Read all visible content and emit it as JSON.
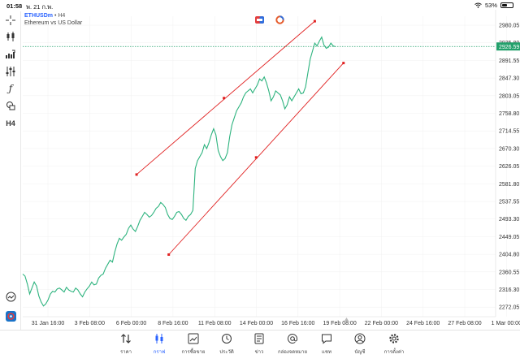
{
  "status": {
    "time": "01:58",
    "date": "พ. 21 ก.พ.",
    "battery": "53%",
    "battery_level": 0.53
  },
  "symbol": {
    "name": "ETHUSDm",
    "separator": "•",
    "timeframe": "H4",
    "description": "Ethereum vs US Dollar"
  },
  "left_toolbar": {
    "items": [
      {
        "name": "crosshair-icon"
      },
      {
        "name": "candles-icon"
      },
      {
        "name": "indicators-icon"
      },
      {
        "name": "settings-sliders-icon"
      },
      {
        "name": "function-icon"
      },
      {
        "name": "objects-icon"
      },
      {
        "name": "timeframe-button",
        "label": "H4"
      }
    ],
    "bottom_items": [
      {
        "name": "chart-gauge-icon"
      },
      {
        "name": "broker-logo-icon"
      }
    ]
  },
  "colors": {
    "line": "#2db37e",
    "drawing": "#e02020",
    "accent": "#2962ff",
    "current_price_bg": "#22a06b",
    "grid": "#f0f0f0"
  },
  "chart_data": {
    "type": "line",
    "y_ticks": [
      "2980.05",
      "2935.80",
      "2891.55",
      "2847.30",
      "2803.05",
      "2758.80",
      "2714.55",
      "2670.30",
      "2626.05",
      "2581.80",
      "2537.55",
      "2493.30",
      "2449.05",
      "2404.80",
      "2360.55",
      "2316.30",
      "2272.05"
    ],
    "x_ticks": [
      "31 Jan 16:00",
      "3 Feb 08:00",
      "6 Feb 00:00",
      "8 Feb 16:00",
      "11 Feb 08:00",
      "14 Feb 00:00",
      "16 Feb 16:00",
      "19 Feb 08:00",
      "22 Feb 00:00",
      "24 Feb 16:00",
      "27 Feb 08:00",
      "1 Mar 00:00"
    ],
    "current_price": "2926.59",
    "ylim": [
      2255,
      2990
    ],
    "series": [
      {
        "values": [
          2355,
          2350,
          2330,
          2305,
          2320,
          2335,
          2325,
          2300,
          2285,
          2275,
          2280,
          2290,
          2305,
          2312,
          2310,
          2318,
          2320,
          2315,
          2310,
          2322,
          2315,
          2312,
          2310,
          2320,
          2315,
          2305,
          2298,
          2310,
          2318,
          2325,
          2335,
          2328,
          2330,
          2345,
          2352,
          2355,
          2370,
          2380,
          2390,
          2385,
          2410,
          2430,
          2445,
          2440,
          2448,
          2455,
          2470,
          2478,
          2468,
          2462,
          2475,
          2490,
          2500,
          2510,
          2505,
          2498,
          2502,
          2510,
          2520,
          2525,
          2535,
          2530,
          2522,
          2505,
          2495,
          2492,
          2500,
          2510,
          2512,
          2505,
          2495,
          2490,
          2500,
          2505,
          2515,
          2620,
          2640,
          2650,
          2660,
          2680,
          2670,
          2685,
          2705,
          2720,
          2705,
          2665,
          2650,
          2640,
          2645,
          2660,
          2700,
          2730,
          2748,
          2765,
          2775,
          2785,
          2800,
          2810,
          2815,
          2820,
          2810,
          2820,
          2830,
          2845,
          2840,
          2850,
          2835,
          2815,
          2790,
          2800,
          2815,
          2810,
          2805,
          2790,
          2770,
          2780,
          2800,
          2790,
          2800,
          2810,
          2820,
          2808,
          2810,
          2825,
          2860,
          2895,
          2915,
          2935,
          2928,
          2940,
          2950,
          2930,
          2922,
          2925,
          2935,
          2928,
          2926
        ]
      }
    ],
    "trend_lines": [
      {
        "from": {
          "x": 49.5,
          "y": 2605
        },
        "to": {
          "x": 127,
          "y": 2990
        },
        "mid": {
          "x": 87.5,
          "y": 2797
        }
      },
      {
        "from": {
          "x": 63.5,
          "y": 2404
        },
        "to": {
          "x": 139.5,
          "y": 2885
        },
        "mid": {
          "x": 101.5,
          "y": 2648
        }
      }
    ]
  },
  "bottom_nav": {
    "items": [
      {
        "id": "quotes",
        "label": "ราคา",
        "icon": "quotes-arrows-icon"
      },
      {
        "id": "chart",
        "label": "กราฟ",
        "icon": "candles-icon",
        "active": true
      },
      {
        "id": "trade",
        "label": "การซื้อขาย",
        "icon": "trade-chart-icon"
      },
      {
        "id": "history",
        "label": "ประวัติ",
        "icon": "history-clock-icon"
      },
      {
        "id": "news",
        "label": "ข่าว",
        "icon": "news-icon"
      },
      {
        "id": "mailbox",
        "label": "กล่องจดหมาย",
        "icon": "at-sign-icon"
      },
      {
        "id": "chat",
        "label": "แชท",
        "icon": "chat-icon"
      },
      {
        "id": "accounts",
        "label": "บัญชี",
        "icon": "account-icon"
      },
      {
        "id": "settings",
        "label": "การตั้งค่า",
        "icon": "gear-icon"
      }
    ]
  }
}
